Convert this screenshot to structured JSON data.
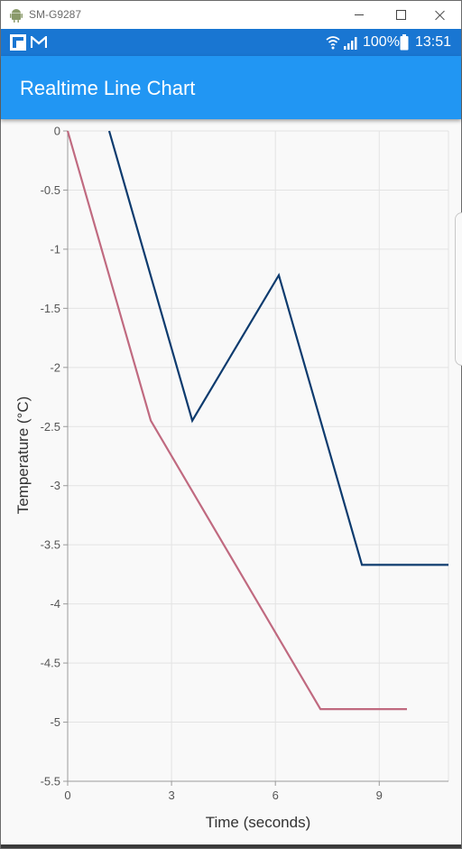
{
  "window": {
    "title": "SM-G9287",
    "app_icon": "android-icon"
  },
  "status_bar": {
    "left_icons": [
      "flipboard-icon",
      "gmail-icon"
    ],
    "right_icons": [
      "wifi-icon",
      "signal-icon",
      "battery-icon"
    ],
    "battery_percent": "100%",
    "time": "13:51"
  },
  "app_bar": {
    "title": "Realtime Line Chart"
  },
  "colors": {
    "status_bar": "#1976d2",
    "app_bar": "#2196f3",
    "series_dark": "#0d3b6e",
    "series_pink": "#c06a80"
  },
  "chart_data": {
    "type": "line",
    "xlabel": "Time (seconds)",
    "ylabel": "Temperature (°C)",
    "xlim": [
      0,
      11
    ],
    "ylim": [
      -5.5,
      0
    ],
    "x_ticks": [
      "0",
      "3",
      "6",
      "9"
    ],
    "y_ticks": [
      "0",
      "-0.5",
      "-1",
      "-1.5",
      "-2",
      "-2.5",
      "-3",
      "-3.5",
      "-4",
      "-4.5",
      "-5",
      "-5.5"
    ],
    "grid": true,
    "series": [
      {
        "color": "#0d3b6e",
        "points": [
          [
            1.2,
            0
          ],
          [
            3.6,
            -2.45
          ],
          [
            6.1,
            -1.22
          ],
          [
            8.5,
            -3.67
          ],
          [
            11,
            -3.67
          ]
        ]
      },
      {
        "color": "#c06a80",
        "points": [
          [
            0,
            0
          ],
          [
            2.4,
            -2.45
          ],
          [
            7.3,
            -4.89
          ],
          [
            9.8,
            -4.89
          ]
        ]
      }
    ]
  }
}
